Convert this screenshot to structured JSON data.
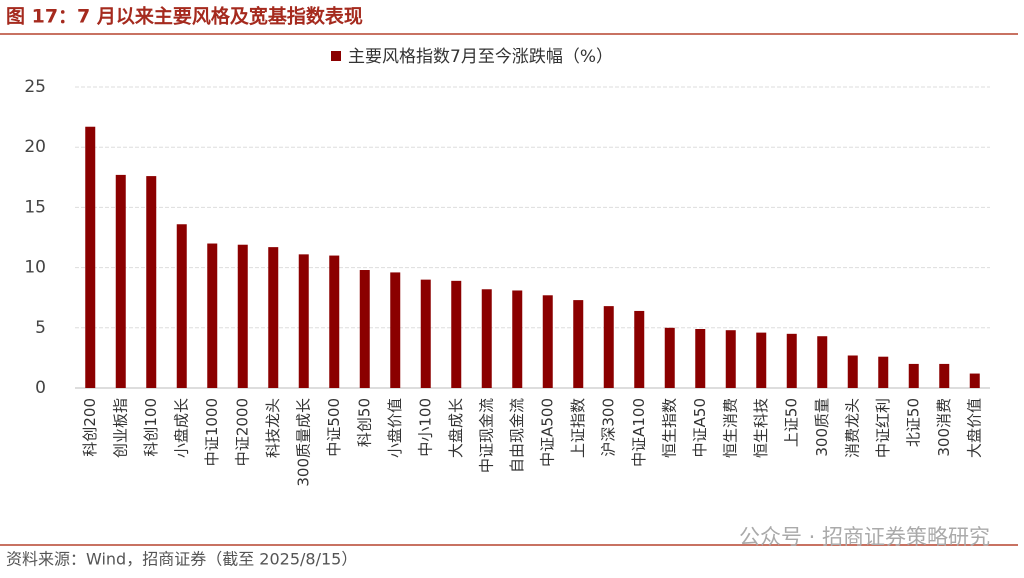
{
  "chart_data": {
    "type": "bar",
    "title": "图 17：7 月以来主要风格及宽基指数表现",
    "source": "资料来源：Wind，招商证券（截至 2025/8/15）",
    "watermark": "公众号 · 招商证券策略研究",
    "categories": [
      "科创200",
      "创业板指",
      "科创100",
      "小盘成长",
      "中证1000",
      "中证2000",
      "科技龙头",
      "300质量成长",
      "中证500",
      "科创50",
      "小盘价值",
      "中小100",
      "大盘成长",
      "中证现金流",
      "自由现金流",
      "中证A500",
      "上证指数",
      "沪深300",
      "中证A100",
      "恒生指数",
      "中证A50",
      "恒生消费",
      "恒生科技",
      "上证50",
      "300质量",
      "消费龙头",
      "中证红利",
      "北证50",
      "300消费",
      "大盘价值"
    ],
    "series": [
      {
        "name": "主要风格指数7月至今涨跌幅（%）",
        "color": "#8b0000",
        "values": [
          21.7,
          17.7,
          17.6,
          13.6,
          12.0,
          11.9,
          11.7,
          11.1,
          11.0,
          9.8,
          9.6,
          9.0,
          8.9,
          8.2,
          8.1,
          7.7,
          7.3,
          6.8,
          6.4,
          5.0,
          4.9,
          4.8,
          4.6,
          4.5,
          4.3,
          2.7,
          2.6,
          2.0,
          2.0,
          1.2
        ]
      }
    ],
    "ylim": [
      0,
      25
    ],
    "yticks": [
      0,
      5,
      10,
      15,
      20,
      25
    ],
    "grid": true,
    "legend": "top"
  }
}
